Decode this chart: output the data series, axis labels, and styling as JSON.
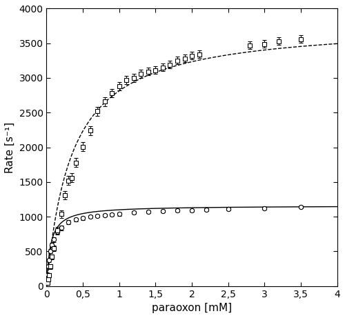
{
  "title": "",
  "xlabel": "paraoxon [mM]",
  "ylabel": "Rate [s⁻¹]",
  "xlim": [
    0,
    4
  ],
  "ylim": [
    0,
    4000
  ],
  "xticks": [
    0,
    0.5,
    1,
    1.5,
    2,
    2.5,
    3,
    3.5,
    4
  ],
  "xticklabels": [
    "0",
    "0,5",
    "1",
    "1,5",
    "2",
    "2,5",
    "3",
    "3,5",
    "4"
  ],
  "yticks": [
    0,
    500,
    1000,
    1500,
    2000,
    2500,
    3000,
    3500,
    4000
  ],
  "zn_Vmax": 1160,
  "zn_Km": 0.055,
  "co_Vmax": 3800,
  "co_Km": 0.35,
  "zn_x": [
    0.01,
    0.02,
    0.03,
    0.05,
    0.075,
    0.1,
    0.15,
    0.2,
    0.3,
    0.4,
    0.5,
    0.6,
    0.7,
    0.8,
    0.9,
    1.0,
    1.2,
    1.4,
    1.6,
    1.8,
    2.0,
    2.2,
    2.5,
    3.0,
    3.5
  ],
  "zn_y": [
    165,
    280,
    370,
    500,
    590,
    670,
    780,
    840,
    920,
    960,
    980,
    1000,
    1010,
    1020,
    1030,
    1040,
    1060,
    1070,
    1080,
    1090,
    1095,
    1100,
    1110,
    1120,
    1140
  ],
  "zn_yerr": [
    20,
    25,
    25,
    30,
    30,
    35,
    35,
    35,
    30,
    25,
    25,
    20,
    20,
    20,
    20,
    25,
    20,
    20,
    20,
    20,
    20,
    20,
    20,
    20,
    20
  ],
  "co_x": [
    0.01,
    0.02,
    0.03,
    0.05,
    0.075,
    0.1,
    0.15,
    0.2,
    0.25,
    0.3,
    0.35,
    0.4,
    0.5,
    0.6,
    0.7,
    0.8,
    0.9,
    1.0,
    1.1,
    1.2,
    1.3,
    1.4,
    1.5,
    1.6,
    1.7,
    1.8,
    1.9,
    2.0,
    2.1,
    2.8,
    3.0,
    3.2,
    3.5
  ],
  "co_y": [
    50,
    100,
    160,
    280,
    420,
    540,
    800,
    1040,
    1310,
    1520,
    1560,
    1780,
    2010,
    2240,
    2520,
    2660,
    2780,
    2880,
    2970,
    3000,
    3060,
    3090,
    3110,
    3150,
    3190,
    3250,
    3280,
    3320,
    3340,
    3470,
    3490,
    3530,
    3560
  ],
  "co_yerr": [
    15,
    20,
    25,
    30,
    35,
    40,
    50,
    55,
    60,
    65,
    65,
    65,
    65,
    65,
    65,
    65,
    60,
    60,
    60,
    60,
    60,
    55,
    55,
    55,
    55,
    55,
    55,
    55,
    55,
    55,
    55,
    55,
    55
  ],
  "marker_size": 4.5,
  "capsize": 2,
  "linewidth": 1.0
}
